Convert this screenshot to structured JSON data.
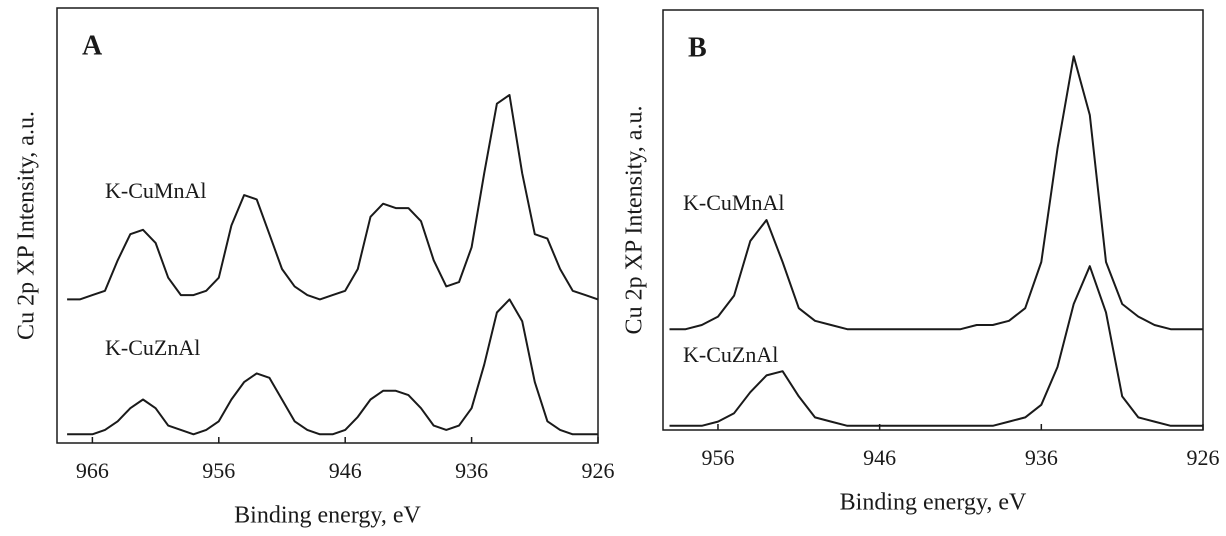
{
  "chart_data": [
    {
      "type": "line",
      "title": "A",
      "xlabel": "Binding energy, eV",
      "ylabel": "Cu 2p XP Intensity, a.u.",
      "xlim": [
        968.8,
        926
      ],
      "xticks": [
        966,
        956,
        946,
        936,
        926
      ],
      "ylim": [
        0,
        100
      ],
      "x": [
        968,
        967,
        966,
        965,
        964,
        963,
        962,
        961,
        960,
        959,
        958,
        957,
        956,
        955,
        954,
        953,
        952,
        951,
        950,
        949,
        948,
        947,
        946,
        945,
        944,
        943,
        942,
        941,
        940,
        939,
        938,
        937,
        936,
        935,
        934,
        933,
        932,
        931,
        930,
        929,
        928,
        927,
        926
      ],
      "series": [
        {
          "name": "K-CuMnAl",
          "color": "#1a1a1a",
          "values": [
            33,
            33,
            34,
            35,
            42,
            48,
            49,
            46,
            38,
            34,
            34,
            35,
            38,
            50,
            57,
            56,
            48,
            40,
            36,
            34,
            33,
            34,
            35,
            40,
            52,
            55,
            54,
            54,
            51,
            42,
            36,
            37,
            45,
            62,
            78,
            80,
            62,
            48,
            47,
            40,
            35,
            34,
            33
          ]
        },
        {
          "name": "K-CuZnAl",
          "color": "#1a1a1a",
          "values": [
            2,
            2,
            2,
            3,
            5,
            8,
            10,
            8,
            4,
            3,
            2,
            3,
            5,
            10,
            14,
            16,
            15,
            10,
            5,
            3,
            2,
            2,
            3,
            6,
            10,
            12,
            12,
            11,
            8,
            4,
            3,
            4,
            8,
            18,
            30,
            33,
            28,
            14,
            5,
            3,
            2,
            2,
            2
          ]
        }
      ]
    },
    {
      "type": "line",
      "title": "B",
      "xlabel": "Binding energy, eV",
      "ylabel": "Cu 2p XP Intensity, a.u.",
      "xlim": [
        959.4,
        926
      ],
      "xticks": [
        956,
        946,
        936,
        926
      ],
      "ylim": [
        0,
        100
      ],
      "x": [
        959,
        958,
        957,
        956,
        955,
        954,
        953,
        952,
        951,
        950,
        949,
        948,
        947,
        946,
        945,
        944,
        943,
        942,
        941,
        940,
        939,
        938,
        937,
        936,
        935,
        934,
        933,
        932,
        931,
        930,
        929,
        928,
        927,
        926
      ],
      "series": [
        {
          "name": "K-CuMnAl",
          "color": "#1a1a1a",
          "values": [
            24,
            24,
            25,
            27,
            32,
            45,
            50,
            40,
            29,
            26,
            25,
            24,
            24,
            24,
            24,
            24,
            24,
            24,
            24,
            25,
            25,
            26,
            29,
            40,
            67,
            89,
            75,
            40,
            30,
            27,
            25,
            24,
            24,
            24
          ]
        },
        {
          "name": "K-CuZnAl",
          "color": "#1a1a1a",
          "values": [
            1,
            1,
            1,
            2,
            4,
            9,
            13,
            14,
            8,
            3,
            2,
            1,
            1,
            1,
            1,
            1,
            1,
            1,
            1,
            1,
            1,
            2,
            3,
            6,
            15,
            30,
            39,
            28,
            8,
            3,
            2,
            1,
            1,
            1
          ]
        }
      ]
    }
  ]
}
